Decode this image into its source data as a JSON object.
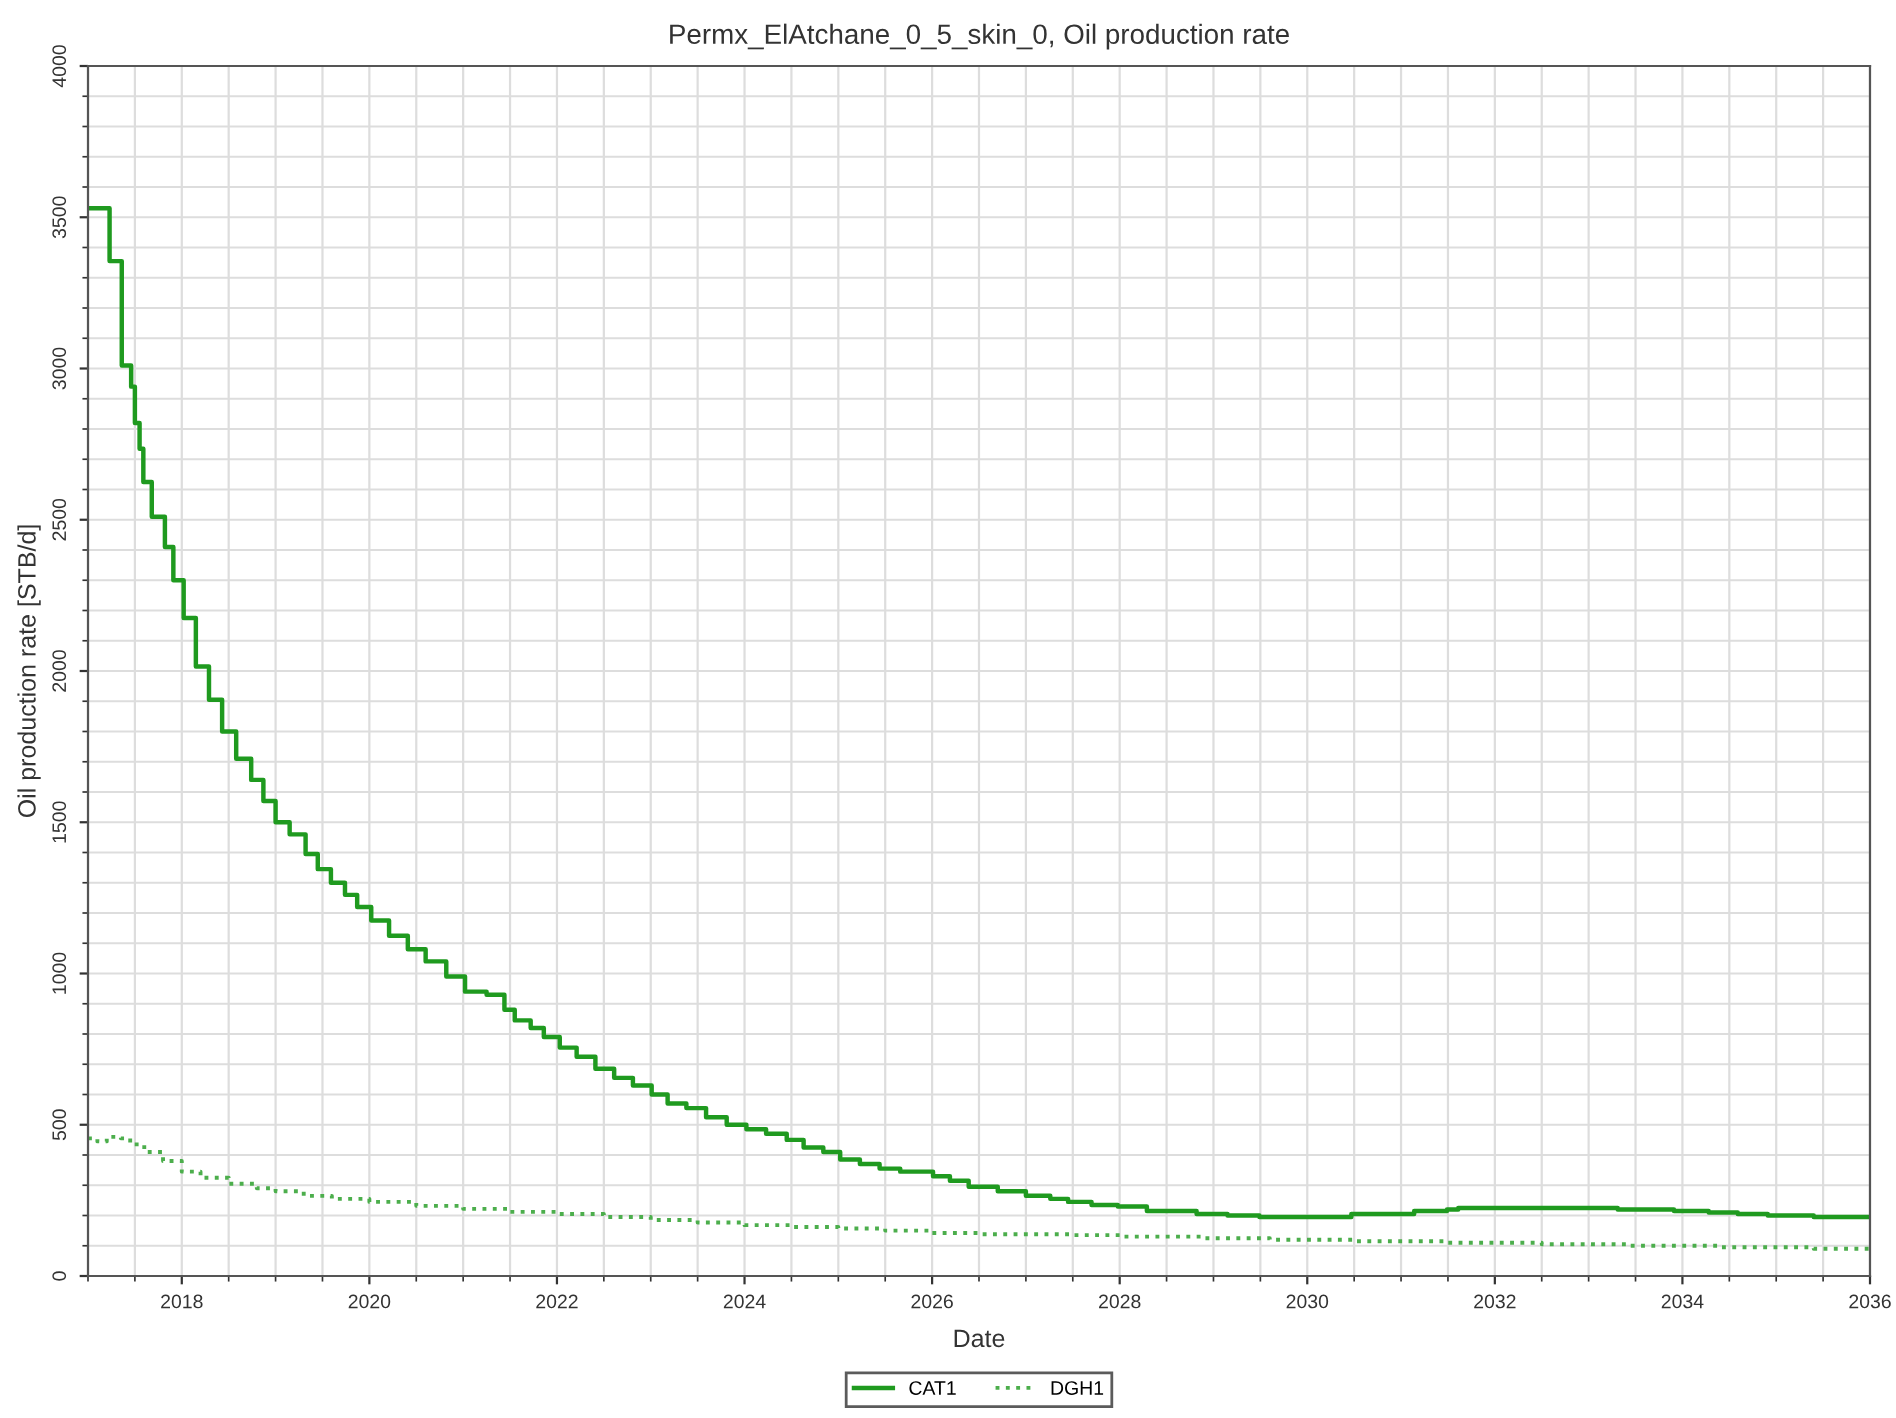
{
  "chart_data": {
    "type": "step",
    "title": "Permx_ElAtchane_0_5_skin_0, Oil production rate",
    "xlabel": "Date",
    "ylabel": "Oil production rate [STB/d]",
    "series": [
      {
        "name": "CAT1",
        "color": "#1f9a1f",
        "line_style": "solid",
        "x": [
          2017.0,
          2017.23,
          2017.36,
          2017.46,
          2017.5,
          2017.55,
          2017.59,
          2017.68,
          2017.82,
          2017.91,
          2018.02,
          2018.15,
          2018.29,
          2018.43,
          2018.58,
          2018.74,
          2018.87,
          2019.0,
          2019.15,
          2019.32,
          2019.45,
          2019.59,
          2019.74,
          2019.87,
          2020.02,
          2020.21,
          2020.41,
          2020.6,
          2020.82,
          2021.02,
          2021.25,
          2021.44,
          2021.55,
          2021.72,
          2021.86,
          2022.03,
          2022.21,
          2022.41,
          2022.61,
          2022.81,
          2023.01,
          2023.18,
          2023.38,
          2023.59,
          2023.81,
          2024.02,
          2024.23,
          2024.45,
          2024.63,
          2024.84,
          2025.02,
          2025.23,
          2025.44,
          2025.66,
          2026.01,
          2026.19,
          2026.39,
          2026.7,
          2027.0,
          2027.26,
          2027.45,
          2027.7,
          2027.98,
          2028.29,
          2028.82,
          2029.15,
          2029.49,
          2030.47,
          2030.96,
          2031.14,
          2031.49,
          2031.61,
          2033.31,
          2033.91,
          2034.28,
          2034.59,
          2034.91,
          2035.4,
          2036.0
        ],
        "values": [
          3530,
          3355,
          3010,
          2940,
          2820,
          2735,
          2625,
          2510,
          2410,
          2300,
          2175,
          2015,
          1905,
          1800,
          1710,
          1640,
          1570,
          1500,
          1460,
          1395,
          1345,
          1300,
          1260,
          1220,
          1175,
          1125,
          1080,
          1040,
          990,
          940,
          930,
          880,
          845,
          820,
          790,
          755,
          725,
          685,
          655,
          630,
          600,
          570,
          555,
          525,
          500,
          485,
          470,
          450,
          425,
          410,
          385,
          370,
          355,
          345,
          330,
          315,
          295,
          280,
          265,
          255,
          245,
          235,
          230,
          215,
          205,
          200,
          195,
          205,
          205,
          215,
          220,
          225,
          220,
          215,
          210,
          205,
          200,
          195,
          195
        ]
      },
      {
        "name": "DGH1",
        "color": "#4cae4c",
        "line_style": "dotted",
        "x": [
          2017.0,
          2017.1,
          2017.2,
          2017.35,
          2017.45,
          2017.6,
          2017.8,
          2018.0,
          2018.2,
          2018.5,
          2018.8,
          2019.0,
          2019.3,
          2019.6,
          2020.0,
          2020.5,
          2021.0,
          2021.5,
          2022.0,
          2022.5,
          2023.0,
          2023.5,
          2024.0,
          2024.5,
          2025.0,
          2025.5,
          2026.0,
          2026.5,
          2027.5,
          2028.0,
          2028.9,
          2029.6,
          2030.5,
          2031.5,
          2032.5,
          2033.4,
          2034.4,
          2035.4,
          2036.0
        ],
        "values": [
          455,
          445,
          460,
          455,
          435,
          410,
          380,
          345,
          325,
          305,
          290,
          280,
          265,
          255,
          245,
          232,
          222,
          212,
          205,
          195,
          185,
          177,
          168,
          162,
          157,
          150,
          142,
          138,
          135,
          130,
          125,
          120,
          115,
          110,
          105,
          100,
          95,
          90,
          90
        ]
      }
    ],
    "xlim": [
      2017,
      2036
    ],
    "xticks": [
      2018,
      2020,
      2022,
      2024,
      2026,
      2028,
      2030,
      2032,
      2034,
      2036
    ],
    "ylim": [
      0,
      4000
    ],
    "yticks": [
      0,
      500,
      1000,
      1500,
      2000,
      2500,
      3000,
      3500,
      4000
    ],
    "grid": true,
    "legend": "bottom"
  }
}
